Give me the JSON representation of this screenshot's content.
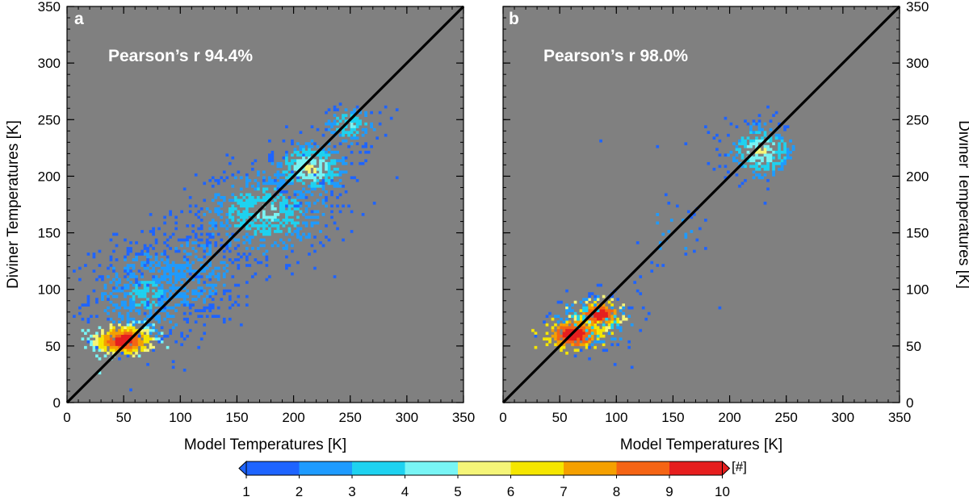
{
  "chart_data": [
    {
      "type": "heatmap",
      "panel": "a",
      "annotation": "Pearson’s r 94.4%",
      "xlabel": "Model Temperatures [K]",
      "ylabel": "Diviner Temperatures [K]",
      "xlim": [
        0,
        350
      ],
      "ylim": [
        0,
        350
      ],
      "xticks": [
        0,
        50,
        100,
        150,
        200,
        250,
        300,
        350
      ],
      "yticks": [
        0,
        50,
        100,
        150,
        200,
        250,
        300,
        350
      ],
      "background_color": "#808080",
      "reference_line": "1:1",
      "density_clusters": [
        {
          "center": [
            50,
            55
          ],
          "spread": [
            14,
            7
          ],
          "count": 380,
          "level_range": [
            4,
            10
          ]
        },
        {
          "center": [
            70,
            95
          ],
          "spread": [
            25,
            22
          ],
          "count": 500,
          "level_range": [
            1,
            3
          ]
        },
        {
          "center": [
            110,
            115
          ],
          "spread": [
            30,
            25
          ],
          "count": 350,
          "level_range": [
            1,
            2
          ]
        },
        {
          "center": [
            175,
            168
          ],
          "spread": [
            30,
            20
          ],
          "count": 550,
          "level_range": [
            1,
            4
          ]
        },
        {
          "center": [
            215,
            207
          ],
          "spread": [
            18,
            13
          ],
          "count": 350,
          "level_range": [
            1,
            5
          ]
        },
        {
          "center": [
            250,
            245
          ],
          "spread": [
            12,
            9
          ],
          "count": 120,
          "level_range": [
            1,
            4
          ]
        }
      ],
      "outliers": [
        [
          292,
          198
        ],
        [
          275,
          255
        ],
        [
          280,
          262
        ],
        [
          285,
          250
        ],
        [
          290,
          258
        ]
      ]
    },
    {
      "type": "heatmap",
      "panel": "b",
      "annotation": "Pearson’s r 98.0%",
      "xlabel": "Model Temperatures [K]",
      "ylabel": "Diviner Temperatures [K]",
      "xlim": [
        0,
        350
      ],
      "ylim": [
        0,
        350
      ],
      "xticks": [
        0,
        50,
        100,
        150,
        200,
        250,
        300,
        350
      ],
      "yticks": [
        0,
        50,
        100,
        150,
        200,
        250,
        300,
        350
      ],
      "background_color": "#808080",
      "reference_line": "1:1",
      "density_clusters": [
        {
          "center": [
            62,
            60
          ],
          "spread": [
            11,
            6
          ],
          "count": 300,
          "level_range": [
            6,
            10
          ]
        },
        {
          "center": [
            85,
            78
          ],
          "spread": [
            10,
            6
          ],
          "count": 150,
          "level_range": [
            5,
            10
          ]
        },
        {
          "center": [
            80,
            72
          ],
          "spread": [
            20,
            12
          ],
          "count": 200,
          "level_range": [
            1,
            4
          ]
        },
        {
          "center": [
            228,
            222
          ],
          "spread": [
            16,
            13
          ],
          "count": 260,
          "level_range": [
            1,
            5
          ]
        },
        {
          "center": [
            150,
            150
          ],
          "spread": [
            20,
            18
          ],
          "count": 30,
          "level_range": [
            1,
            2
          ]
        }
      ],
      "outliers": [
        [
          85,
          230
        ],
        [
          135,
          225
        ],
        [
          160,
          228
        ],
        [
          180,
          210
        ],
        [
          192,
          84
        ],
        [
          140,
          120
        ],
        [
          120,
          110
        ],
        [
          170,
          170
        ]
      ]
    }
  ],
  "colorbar": {
    "title": "[#]",
    "tick_labels": [
      "1",
      "2",
      "3",
      "4",
      "5",
      "6",
      "7",
      "8",
      "9",
      "10"
    ],
    "colors": [
      "#1e64ff",
      "#1e9bff",
      "#1ed2f0",
      "#78f5f5",
      "#f5f578",
      "#f5e600",
      "#f5a000",
      "#f56414",
      "#e61e1e"
    ],
    "left_extension_color": "#1e64ff",
    "right_extension_color": "#e61e1e"
  }
}
